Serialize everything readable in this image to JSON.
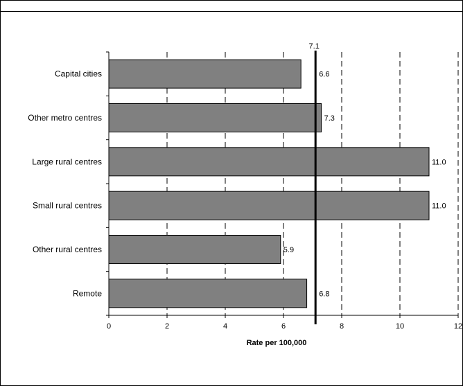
{
  "chart_data": {
    "type": "bar",
    "orientation": "horizontal",
    "categories": [
      "Capital cities",
      "Other metro  centres",
      "Large rural  centres",
      "Small  rural  centres",
      "Other rural centres",
      "Remote"
    ],
    "values": [
      6.6,
      7.3,
      11.0,
      11.0,
      5.9,
      6.8
    ],
    "value_labels": [
      "6.6",
      "7.3",
      "11.0",
      "11.0",
      "5.9",
      "6.8"
    ],
    "reference_line": {
      "value": 7.1,
      "label": "7.1"
    },
    "xlabel": "Rate per 100,000",
    "xlim": [
      0,
      12
    ],
    "x_ticks": [
      0,
      2,
      4,
      6,
      8,
      10,
      12
    ],
    "x_tick_labels": [
      "0",
      "2",
      "4",
      "6",
      "8",
      "10",
      "12"
    ],
    "grid": "vertical dashed",
    "bar_color": "#808080"
  }
}
